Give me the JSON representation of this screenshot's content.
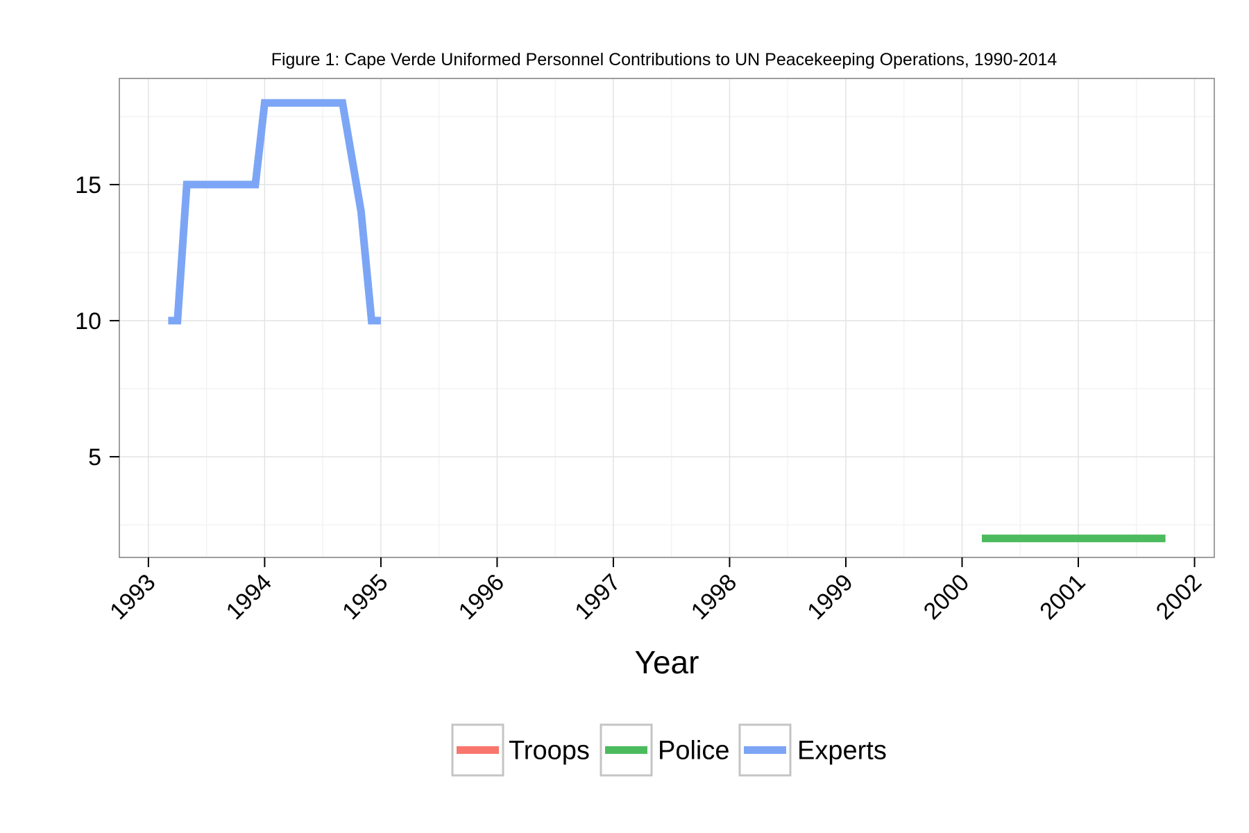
{
  "chart_data": {
    "type": "line",
    "title": "Figure 1: Cape Verde Uniformed Personnel Contributions to UN Peacekeeping Operations, 1990-2014",
    "xlabel": "Year",
    "ylabel": "",
    "xlim": [
      1992.75,
      2002.17
    ],
    "ylim": [
      1.3,
      18.9
    ],
    "x_ticks": [
      "1993",
      "1994",
      "1995",
      "1996",
      "1997",
      "1998",
      "1999",
      "2000",
      "2001",
      "2002"
    ],
    "y_ticks": [
      "5",
      "10",
      "15"
    ],
    "grid": true,
    "legend_position": "bottom",
    "series": [
      {
        "name": "Troops",
        "color": "#F8766D",
        "points": []
      },
      {
        "name": "Police",
        "color": "#4CBB5E",
        "points": [
          {
            "x": 2000.17,
            "y": 2
          },
          {
            "x": 2001.75,
            "y": 2
          }
        ]
      },
      {
        "name": "Experts",
        "color": "#7CA6F5",
        "points": [
          {
            "x": 1993.17,
            "y": 10
          },
          {
            "x": 1993.25,
            "y": 10
          },
          {
            "x": 1993.33,
            "y": 15
          },
          {
            "x": 1993.92,
            "y": 15
          },
          {
            "x": 1994.0,
            "y": 18
          },
          {
            "x": 1994.67,
            "y": 18
          },
          {
            "x": 1994.83,
            "y": 14
          },
          {
            "x": 1994.92,
            "y": 10
          },
          {
            "x": 1995.0,
            "y": 10
          }
        ]
      }
    ]
  }
}
